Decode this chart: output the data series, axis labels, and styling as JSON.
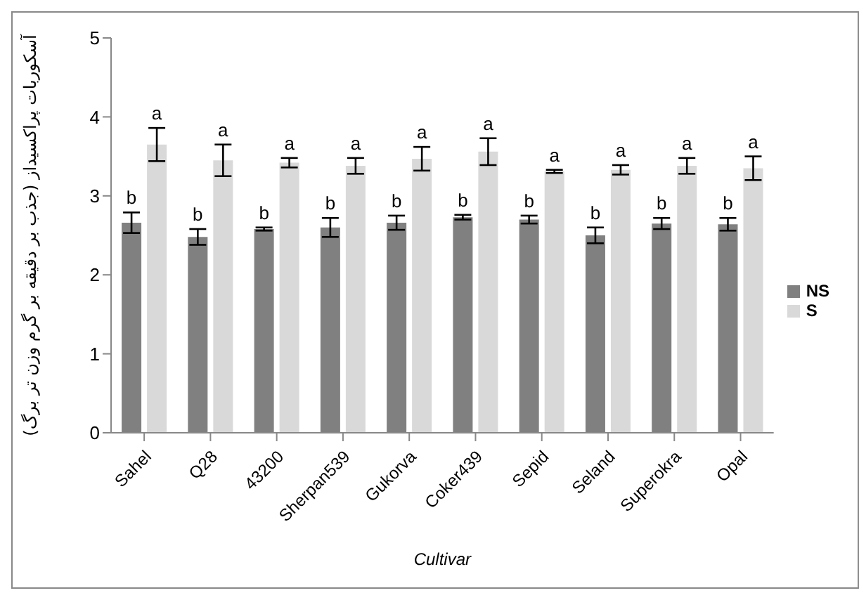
{
  "chart_data": {
    "type": "bar",
    "xlabel": "Cultivar",
    "ylabel": "آسکوربات پراکسیداز (جذب بر دقیقه بر گرم وزن تر برگ)",
    "categories": [
      "Sahel",
      "Q28",
      "43200",
      "Sherpan539",
      "Gukorva",
      "Coker439",
      "Sepid",
      "Seland",
      "Superokra",
      "Opal"
    ],
    "series": [
      {
        "name": "NS",
        "color": "#808080",
        "values": [
          2.66,
          2.48,
          2.58,
          2.6,
          2.66,
          2.73,
          2.7,
          2.5,
          2.65,
          2.64
        ],
        "errors": [
          0.13,
          0.1,
          0.02,
          0.12,
          0.09,
          0.03,
          0.05,
          0.1,
          0.07,
          0.08
        ],
        "value_labels": [
          "b",
          "b",
          "b",
          "b",
          "b",
          "b",
          "b",
          "b",
          "b",
          "b"
        ]
      },
      {
        "name": "S",
        "color": "#d9d9d9",
        "values": [
          3.65,
          3.45,
          3.42,
          3.38,
          3.47,
          3.56,
          3.31,
          3.33,
          3.38,
          3.35
        ],
        "errors": [
          0.21,
          0.2,
          0.06,
          0.1,
          0.15,
          0.17,
          0.02,
          0.06,
          0.1,
          0.15
        ],
        "value_labels": [
          "a",
          "a",
          "a",
          "a",
          "a",
          "a",
          "a",
          "a",
          "a",
          "a"
        ]
      }
    ],
    "ylim": [
      0,
      5
    ],
    "yticks": [
      0,
      1,
      2,
      3,
      4,
      5
    ],
    "legend": "right"
  }
}
